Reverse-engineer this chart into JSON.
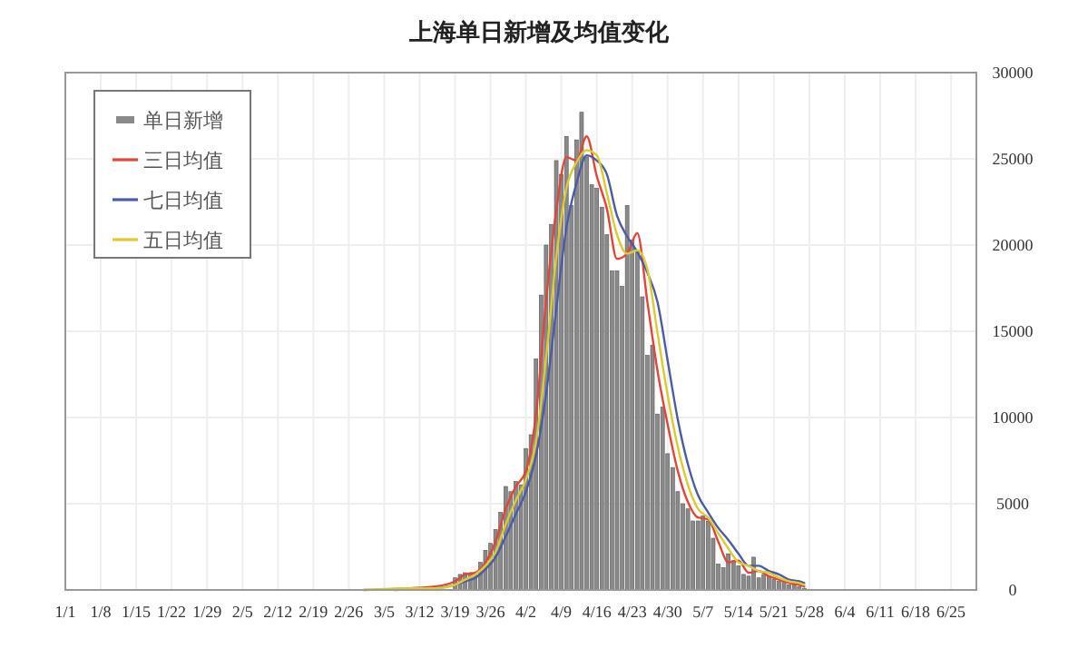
{
  "chart_data": {
    "type": "bar",
    "title": "上海单日新增及均值变化",
    "xlim": [
      "--01-01",
      "--06-30"
    ],
    "xticks": [
      {
        "value": "--01-01",
        "label": "1/1"
      },
      {
        "value": "--01-08",
        "label": "1/8"
      },
      {
        "value": "--01-15",
        "label": "1/15"
      },
      {
        "value": "--01-22",
        "label": "1/22"
      },
      {
        "value": "--01-29",
        "label": "1/29"
      },
      {
        "value": "--02-05",
        "label": "2/5"
      },
      {
        "value": "--02-12",
        "label": "2/12"
      },
      {
        "value": "--02-19",
        "label": "2/19"
      },
      {
        "value": "--02-26",
        "label": "2/26"
      },
      {
        "value": "--03-05",
        "label": "3/5"
      },
      {
        "value": "--03-12",
        "label": "3/12"
      },
      {
        "value": "--03-19",
        "label": "3/19"
      },
      {
        "value": "--03-26",
        "label": "3/26"
      },
      {
        "value": "--04-02",
        "label": "4/2"
      },
      {
        "value": "--04-09",
        "label": "4/9"
      },
      {
        "value": "--04-16",
        "label": "4/16"
      },
      {
        "value": "--04-23",
        "label": "4/23"
      },
      {
        "value": "--04-30",
        "label": "4/30"
      },
      {
        "value": "--05-07",
        "label": "5/7"
      },
      {
        "value": "--05-14",
        "label": "5/14"
      },
      {
        "value": "--05-21",
        "label": "5/21"
      },
      {
        "value": "--05-28",
        "label": "5/28"
      },
      {
        "value": "--06-04",
        "label": "6/4"
      },
      {
        "value": "--06-11",
        "label": "6/11"
      },
      {
        "value": "--06-18",
        "label": "6/18"
      },
      {
        "value": "--06-25",
        "label": "6/25"
      }
    ],
    "ylim": [
      0,
      30000
    ],
    "yticks": [
      0,
      5000,
      10000,
      15000,
      20000,
      25000,
      30000
    ],
    "grid": true,
    "legend": "top left",
    "x": [
      "--03-19",
      "--03-20",
      "--03-21",
      "--03-22",
      "--03-23",
      "--03-24",
      "--03-25",
      "--03-26",
      "--03-27",
      "--03-28",
      "--03-29",
      "--03-30",
      "--03-31",
      "--04-01",
      "--04-02",
      "--04-03",
      "--04-04",
      "--04-05",
      "--04-06",
      "--04-07",
      "--04-08",
      "--04-09",
      "--04-10",
      "--04-11",
      "--04-12",
      "--04-13",
      "--04-14",
      "--04-15",
      "--04-16",
      "--04-17",
      "--04-18",
      "--04-19",
      "--04-20",
      "--04-21",
      "--04-22",
      "--04-23",
      "--04-24",
      "--04-25",
      "--04-26",
      "--04-27",
      "--04-28",
      "--04-29",
      "--04-30",
      "--05-01",
      "--05-02",
      "--05-03",
      "--05-04",
      "--05-05",
      "--05-06",
      "--05-07",
      "--05-08",
      "--05-09",
      "--05-10",
      "--05-11",
      "--05-12",
      "--05-13",
      "--05-14",
      "--05-15",
      "--05-16",
      "--05-17",
      "--05-18",
      "--05-19",
      "--05-20",
      "--05-21",
      "--05-22",
      "--05-23",
      "--05-24",
      "--05-25",
      "--05-26",
      "--05-27"
    ],
    "series": [
      {
        "name": "单日新增",
        "color": "#8a8a8a",
        "values": [
          700,
          900,
          1000,
          1000,
          1000,
          1600,
          2300,
          2700,
          3500,
          4500,
          6000,
          5700,
          6300,
          6100,
          8200,
          9000,
          13400,
          17100,
          20000,
          21200,
          24900,
          24100,
          26300,
          22300,
          26100,
          27700,
          25100,
          23500,
          23300,
          22200,
          20600,
          18500,
          18500,
          17600,
          22300,
          20300,
          19700,
          17000,
          13600,
          14200,
          10200,
          10600,
          7900,
          7100,
          5700,
          5000,
          4700,
          4000,
          4000,
          4300,
          4000,
          3000,
          1500,
          1300,
          2100,
          1700,
          1400,
          900,
          800,
          1900,
          700,
          900,
          800,
          600,
          500,
          500,
          300,
          300,
          200,
          100
        ]
      },
      {
        "name": "三日均值",
        "type": "line",
        "color": "#e0463a",
        "x": [
          "--03-01",
          "--03-10",
          "--03-15",
          "--03-19",
          "--03-21",
          "--03-23",
          "--03-25",
          "--03-27",
          "--03-29",
          "--03-31",
          "--04-02",
          "--04-04",
          "--04-06",
          "--04-08",
          "--04-10",
          "--04-12",
          "--04-14",
          "--04-16",
          "--04-18",
          "--04-20",
          "--04-22",
          "--04-24",
          "--04-26",
          "--04-28",
          "--04-30",
          "--05-02",
          "--05-04",
          "--05-06",
          "--05-08",
          "--05-10",
          "--05-12",
          "--05-14",
          "--05-16",
          "--05-18",
          "--05-20",
          "--05-22",
          "--05-24",
          "--05-26",
          "--05-27"
        ],
        "values": [
          0,
          100,
          200,
          500,
          900,
          1000,
          1600,
          2800,
          4700,
          6000,
          6900,
          10200,
          16800,
          22000,
          25100,
          24900,
          26300,
          24000,
          22100,
          19200,
          19500,
          20700,
          16700,
          12700,
          9600,
          6900,
          5100,
          4200,
          4100,
          2800,
          1600,
          1700,
          1000,
          1100,
          800,
          600,
          400,
          300,
          200
        ]
      },
      {
        "name": "七日均值",
        "type": "line",
        "color": "#4a5ca8",
        "x": [
          "--03-07",
          "--03-15",
          "--03-19",
          "--03-21",
          "--03-23",
          "--03-25",
          "--03-27",
          "--03-29",
          "--03-31",
          "--04-02",
          "--04-04",
          "--04-06",
          "--04-08",
          "--04-10",
          "--04-12",
          "--04-14",
          "--04-16",
          "--04-18",
          "--04-20",
          "--04-22",
          "--04-24",
          "--04-26",
          "--04-28",
          "--04-30",
          "--05-02",
          "--05-04",
          "--05-06",
          "--05-08",
          "--05-10",
          "--05-12",
          "--05-14",
          "--05-16",
          "--05-18",
          "--05-20",
          "--05-22",
          "--05-24",
          "--05-26",
          "--05-27"
        ],
        "values": [
          0,
          100,
          300,
          500,
          700,
          1200,
          1900,
          3100,
          4400,
          5700,
          7800,
          11400,
          16300,
          21000,
          23600,
          25200,
          24900,
          24100,
          21700,
          20500,
          19600,
          18400,
          16700,
          13300,
          9900,
          7300,
          5500,
          4500,
          3600,
          2900,
          2100,
          1400,
          1400,
          1100,
          900,
          600,
          500,
          400
        ]
      },
      {
        "name": "五日均值",
        "type": "line",
        "color": "#dccb2e",
        "x": [
          "--03-01",
          "--03-10",
          "--03-15",
          "--03-19",
          "--03-21",
          "--03-23",
          "--03-25",
          "--03-27",
          "--03-29",
          "--03-31",
          "--04-02",
          "--04-04",
          "--04-06",
          "--04-08",
          "--04-10",
          "--04-12",
          "--04-14",
          "--04-16",
          "--04-18",
          "--04-20",
          "--04-22",
          "--04-24",
          "--04-26",
          "--04-28",
          "--04-30",
          "--05-02",
          "--05-04",
          "--05-06",
          "--05-08",
          "--05-10",
          "--05-12",
          "--05-14",
          "--05-16",
          "--05-18",
          "--05-20",
          "--05-22",
          "--05-24",
          "--05-26",
          "--05-27"
        ],
        "values": [
          0,
          100,
          100,
          300,
          600,
          900,
          1400,
          2200,
          3800,
          5200,
          6400,
          8600,
          13500,
          19300,
          23300,
          24800,
          25500,
          25200,
          23000,
          20600,
          19500,
          19700,
          18600,
          14900,
          11300,
          8300,
          6100,
          4700,
          4200,
          3300,
          2400,
          1600,
          1400,
          1100,
          1000,
          700,
          500,
          400,
          300
        ]
      }
    ]
  }
}
